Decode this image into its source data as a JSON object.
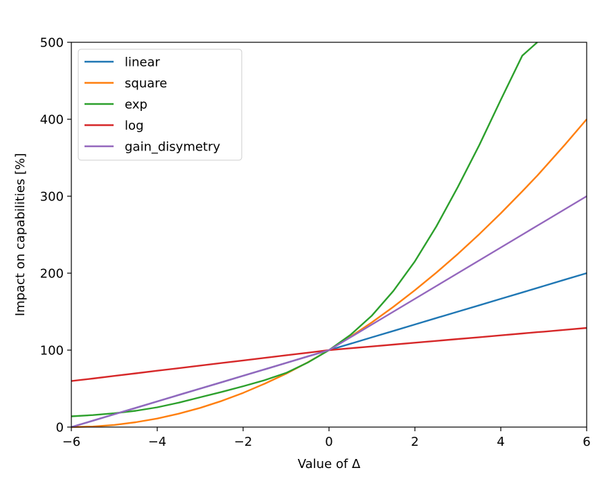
{
  "chart_data": {
    "type": "line",
    "title": "",
    "xlabel": "Value of Δ",
    "ylabel": "Impact on capabilities [%]",
    "xlim": [
      -6,
      6
    ],
    "ylim": [
      0,
      500
    ],
    "x_ticks": [
      -6,
      -4,
      -2,
      0,
      2,
      4,
      6
    ],
    "x_tick_labels": [
      "−6",
      "−4",
      "−2",
      "0",
      "2",
      "4",
      "6"
    ],
    "y_ticks": [
      0,
      100,
      200,
      300,
      400,
      500
    ],
    "y_tick_labels": [
      "0",
      "100",
      "200",
      "300",
      "400",
      "500"
    ],
    "grid": false,
    "legend_position": "top-left",
    "x": [
      -6,
      -5.5,
      -5,
      -4.5,
      -4,
      -3.5,
      -3,
      -2.5,
      -2,
      -1.5,
      -1,
      -0.5,
      0,
      0.5,
      1,
      1.5,
      2,
      2.5,
      3,
      3.5,
      4,
      4.5,
      4.85,
      5,
      5.5,
      6
    ],
    "series": [
      {
        "name": "linear",
        "color": "#1f77b4",
        "values": [
          0,
          8.3,
          16.7,
          25,
          33.3,
          41.7,
          50,
          58.3,
          66.7,
          75,
          83.3,
          91.7,
          100,
          108.3,
          116.7,
          125,
          133.3,
          141.7,
          150,
          158.3,
          166.7,
          175,
          180.8,
          183.3,
          191.7,
          200
        ]
      },
      {
        "name": "square",
        "color": "#ff7f0e",
        "values": [
          0,
          0.7,
          2.8,
          6.3,
          11.1,
          17.4,
          25,
          34,
          44.4,
          56.3,
          69.4,
          84,
          100,
          117.4,
          136.1,
          156.3,
          177.8,
          200.7,
          225,
          250.7,
          277.8,
          306.3,
          326.8,
          336.1,
          367.4,
          400
        ]
      },
      {
        "name": "exp",
        "color": "#2ca02c",
        "values": [
          14,
          15.6,
          17.9,
          21.2,
          25.7,
          31.7,
          38.7,
          45.7,
          53.1,
          60.9,
          70.4,
          83.7,
          100,
          119.8,
          145,
          176.9,
          215.4,
          260.8,
          312,
          366.5,
          425.2,
          482.6,
          500,
          null,
          null,
          null
        ]
      },
      {
        "name": "log",
        "color": "#d62728",
        "values": [
          59.8,
          63.1,
          66.5,
          69.8,
          73.2,
          76.5,
          79.9,
          83.2,
          86.6,
          89.9,
          93.3,
          96.6,
          100,
          102.4,
          104.8,
          107.2,
          109.6,
          112,
          114.4,
          116.8,
          119.2,
          121.6,
          123.3,
          124,
          126.4,
          128.8
        ]
      },
      {
        "name": "gain_disymetry",
        "color": "#9467bd",
        "values": [
          0,
          8.3,
          16.7,
          25,
          33.3,
          41.7,
          50,
          58.3,
          66.7,
          75,
          83.3,
          91.7,
          100,
          116.7,
          133.3,
          150,
          166.7,
          183.3,
          200,
          216.7,
          233.3,
          250,
          261.7,
          266.7,
          283.3,
          300
        ]
      }
    ]
  }
}
